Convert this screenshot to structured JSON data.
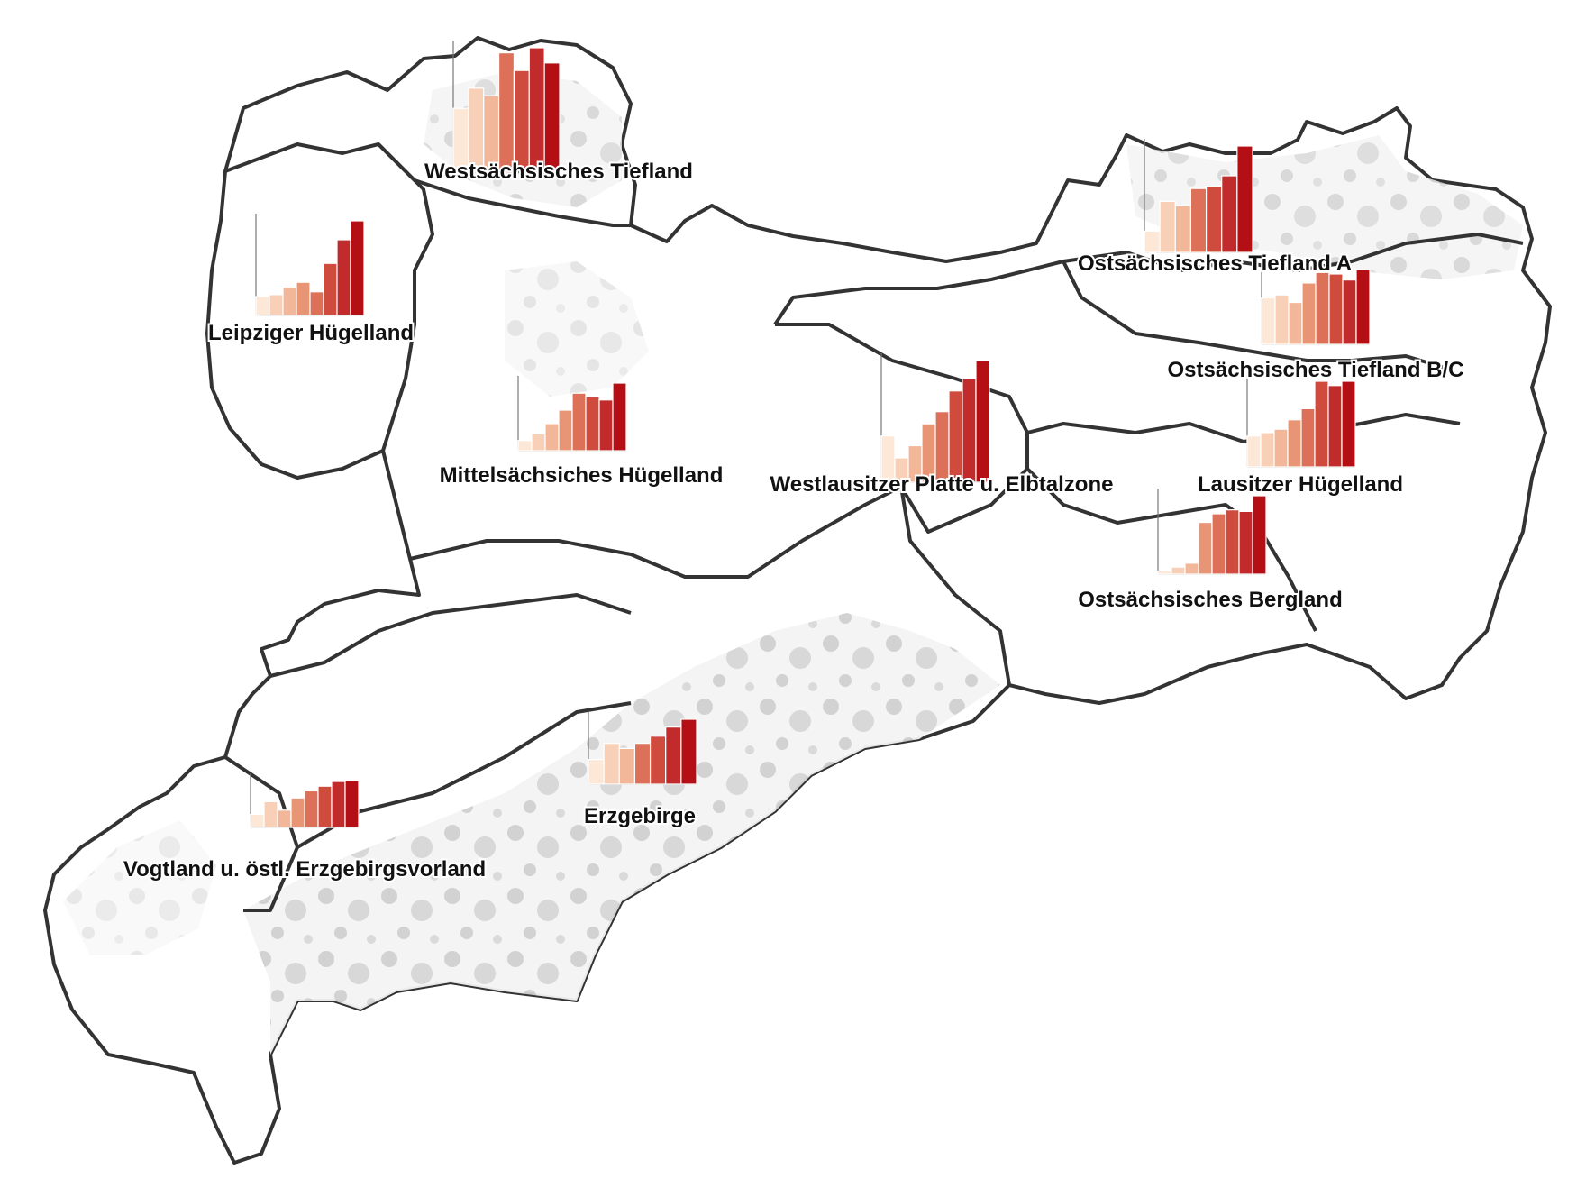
{
  "colors": {
    "background": "#ffffff",
    "land": "#f4f4f4",
    "forest": "#c8c8c8",
    "boundary": "#333333",
    "label": "#111111",
    "ramp": [
      "#fde8d8",
      "#f7d0b7",
      "#f2b698",
      "#e89575",
      "#dc7058",
      "#cf4b3e",
      "#c22b2b",
      "#b40f14"
    ]
  },
  "regions": [
    {
      "id": "westsachsisches-tiefland",
      "label": "Westsächsisches Tiefland",
      "values": [
        0.52,
        0.68,
        0.62,
        0.96,
        0.82,
        1.0,
        0.88
      ]
    },
    {
      "id": "leipziger-hugelland",
      "label": "Leipziger Hügelland",
      "values": [
        0.2,
        0.22,
        0.3,
        0.35,
        0.25,
        0.55,
        0.8,
        1.0
      ]
    },
    {
      "id": "mittelsachsisches-hugelland",
      "label": "Mittelsächsiches Hügelland",
      "values": [
        0.15,
        0.25,
        0.4,
        0.6,
        0.85,
        0.8,
        0.75,
        1.0
      ]
    },
    {
      "id": "westlausitzer-platte",
      "label": "Westlausitzer Platte u. Elbtalzone",
      "values": [
        0.38,
        0.2,
        0.3,
        0.48,
        0.58,
        0.75,
        0.85,
        1.0
      ]
    },
    {
      "id": "ostsachsisches-tiefland-a",
      "label": "Ostsächsisches Tiefland A",
      "values": [
        0.2,
        0.48,
        0.44,
        0.6,
        0.62,
        0.72,
        1.0
      ]
    },
    {
      "id": "ostsachsisches-tiefland-bc",
      "label": "Ostsächsisches Tiefland B/C",
      "values": [
        0.62,
        0.66,
        0.56,
        0.82,
        0.96,
        0.94,
        0.86,
        1.0
      ]
    },
    {
      "id": "lausitzer-hugelland",
      "label": "Lausitzer Hügelland",
      "values": [
        0.36,
        0.4,
        0.44,
        0.55,
        0.68,
        1.0,
        0.95,
        1.0
      ]
    },
    {
      "id": "ostsachsisches-bergland",
      "label": "Ostsächsisches Bergland",
      "values": [
        0.04,
        0.09,
        0.14,
        0.66,
        0.77,
        0.82,
        0.8,
        1.0
      ]
    },
    {
      "id": "erzgebirge",
      "label": "Erzgebirge",
      "values": [
        0.38,
        0.63,
        0.55,
        0.63,
        0.74,
        0.88,
        1.0
      ]
    },
    {
      "id": "vogtland",
      "label": "Vogtland u. östl. Erzgebirgsvorland",
      "values": [
        0.28,
        0.55,
        0.37,
        0.63,
        0.78,
        0.88,
        0.98,
        1.0
      ]
    }
  ]
}
